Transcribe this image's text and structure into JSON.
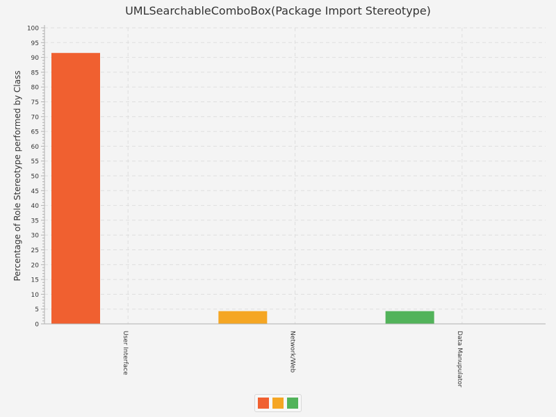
{
  "chart_data": {
    "type": "bar",
    "title": "UMLSearchableComboBox(Package Import Stereotype)",
    "xlabel": "",
    "ylabel": "Percentage of Role Stereotype performed by Class",
    "ylim": [
      0,
      100
    ],
    "yticks": [
      0,
      5,
      10,
      15,
      20,
      25,
      30,
      35,
      40,
      45,
      50,
      55,
      60,
      65,
      70,
      75,
      80,
      85,
      90,
      95,
      100
    ],
    "grid": true,
    "categories": [
      "User Interface",
      "Network/Web",
      "Data Manupulator"
    ],
    "values": [
      91.5,
      4.3,
      4.3
    ],
    "colors": [
      "#f06030",
      "#f5a623",
      "#52b35a"
    ],
    "legend_placement": "bottom-center"
  }
}
